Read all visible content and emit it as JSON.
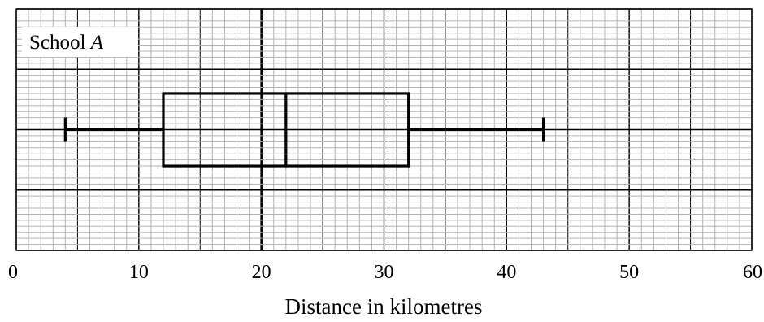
{
  "chart_data": {
    "type": "boxplot",
    "title": "",
    "label_prefix": "School ",
    "label_italic": "A",
    "xlabel": "Distance in kilometres",
    "xlim": [
      0,
      60
    ],
    "x_ticks": [
      0,
      10,
      20,
      30,
      40,
      50,
      60
    ],
    "x_tick_labels": [
      "0",
      "10",
      "20",
      "30",
      "40",
      "50",
      "60"
    ],
    "grid": true,
    "minor_grid_step": 1,
    "mid_grid_step": 5,
    "major_grid_step": 10,
    "highlight_vertical_line_at": 20,
    "five_number_summary": {
      "min": 4,
      "q1": 12,
      "median": 22,
      "q3": 32,
      "max": 43
    },
    "colors": {
      "minor_grid": "#b3b3b3",
      "major_grid": "#000000",
      "box": "#000000"
    }
  }
}
